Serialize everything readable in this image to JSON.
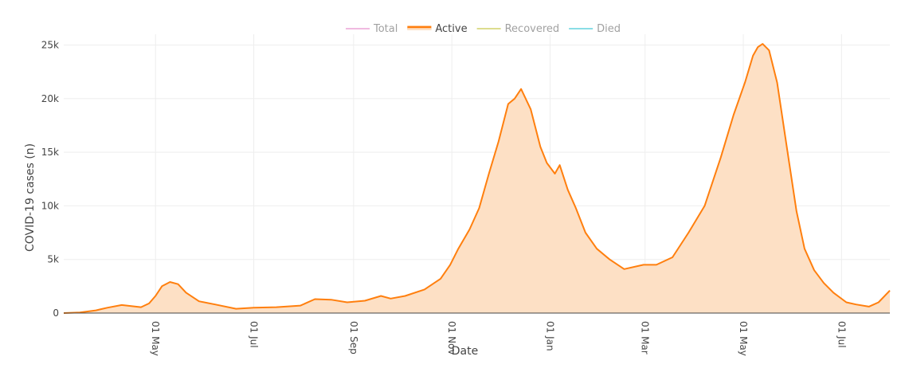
{
  "chart_data": {
    "type": "area",
    "xlabel": "Date",
    "ylabel": "COVID-19 cases (n)",
    "x_ticks": [
      "01 May",
      "01 Jul",
      "01 Sep",
      "01 Nov",
      "01 Jan",
      "01 Mar",
      "01 May",
      "01 Jul"
    ],
    "y_ticks": [
      "0",
      "5k",
      "10k",
      "15k",
      "20k",
      "25k"
    ],
    "ylim": [
      0,
      26000
    ],
    "xlim": [
      "2020-03-05",
      "2021-07-31"
    ],
    "grid": true,
    "legend": {
      "placement": "top-center",
      "entries": [
        {
          "name": "Total",
          "color": "#e377c2",
          "active": false
        },
        {
          "name": "Active",
          "color": "#ff7f0e",
          "active": true
        },
        {
          "name": "Recovered",
          "color": "#bcbd22",
          "active": false
        },
        {
          "name": "Died",
          "color": "#17becf",
          "active": false
        }
      ]
    },
    "series": [
      {
        "name": "Active",
        "color": "#ff7f0e",
        "fill": "#fde0c5",
        "points": [
          [
            "2020-03-05",
            0
          ],
          [
            "2020-03-15",
            50
          ],
          [
            "2020-03-25",
            250
          ],
          [
            "2020-04-01",
            500
          ],
          [
            "2020-04-10",
            750
          ],
          [
            "2020-04-22",
            550
          ],
          [
            "2020-04-27",
            900
          ],
          [
            "2020-05-01",
            1600
          ],
          [
            "2020-05-05",
            2500
          ],
          [
            "2020-05-10",
            2900
          ],
          [
            "2020-05-15",
            2700
          ],
          [
            "2020-05-20",
            1900
          ],
          [
            "2020-05-28",
            1100
          ],
          [
            "2020-06-07",
            800
          ],
          [
            "2020-06-20",
            400
          ],
          [
            "2020-07-01",
            500
          ],
          [
            "2020-07-15",
            550
          ],
          [
            "2020-07-30",
            700
          ],
          [
            "2020-08-08",
            1300
          ],
          [
            "2020-08-18",
            1250
          ],
          [
            "2020-08-28",
            1000
          ],
          [
            "2020-09-08",
            1150
          ],
          [
            "2020-09-18",
            1600
          ],
          [
            "2020-09-24",
            1350
          ],
          [
            "2020-10-03",
            1600
          ],
          [
            "2020-10-15",
            2200
          ],
          [
            "2020-10-25",
            3200
          ],
          [
            "2020-10-31",
            4500
          ],
          [
            "2020-11-05",
            6000
          ],
          [
            "2020-11-12",
            7800
          ],
          [
            "2020-11-18",
            9800
          ],
          [
            "2020-11-24",
            13000
          ],
          [
            "2020-11-30",
            16000
          ],
          [
            "2020-12-06",
            19500
          ],
          [
            "2020-12-10",
            20000
          ],
          [
            "2020-12-14",
            20900
          ],
          [
            "2020-12-20",
            19000
          ],
          [
            "2020-12-26",
            15500
          ],
          [
            "2020-12-30",
            14000
          ],
          [
            "2021-01-04",
            13000
          ],
          [
            "2021-01-07",
            13800
          ],
          [
            "2021-01-12",
            11500
          ],
          [
            "2021-01-17",
            9800
          ],
          [
            "2021-01-23",
            7500
          ],
          [
            "2021-01-30",
            6000
          ],
          [
            "2021-02-07",
            5000
          ],
          [
            "2021-02-16",
            4100
          ],
          [
            "2021-02-28",
            4500
          ],
          [
            "2021-03-08",
            4500
          ],
          [
            "2021-03-18",
            5200
          ],
          [
            "2021-03-28",
            7500
          ],
          [
            "2021-04-07",
            10000
          ],
          [
            "2021-04-17",
            14500
          ],
          [
            "2021-04-25",
            18500
          ],
          [
            "2021-05-02",
            21500
          ],
          [
            "2021-05-07",
            24000
          ],
          [
            "2021-05-10",
            24800
          ],
          [
            "2021-05-13",
            25100
          ],
          [
            "2021-05-17",
            24500
          ],
          [
            "2021-05-22",
            21500
          ],
          [
            "2021-05-28",
            15500
          ],
          [
            "2021-06-03",
            9500
          ],
          [
            "2021-06-08",
            6000
          ],
          [
            "2021-06-14",
            4000
          ],
          [
            "2021-06-20",
            2800
          ],
          [
            "2021-06-26",
            1900
          ],
          [
            "2021-07-04",
            1000
          ],
          [
            "2021-07-10",
            800
          ],
          [
            "2021-07-18",
            600
          ],
          [
            "2021-07-24",
            1000
          ],
          [
            "2021-07-31",
            2100
          ]
        ]
      }
    ]
  }
}
